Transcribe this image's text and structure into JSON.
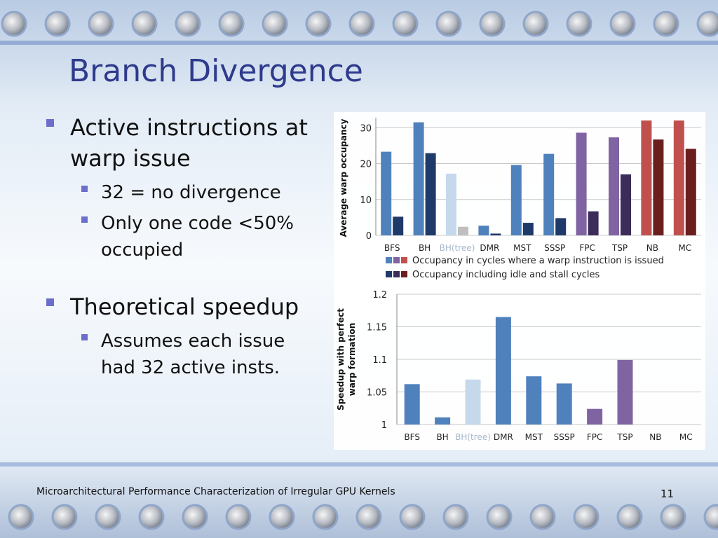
{
  "slide": {
    "title": "Branch Divergence",
    "bullets": [
      {
        "level": 1,
        "text": "Active instructions at warp issue"
      },
      {
        "level": 2,
        "text": "32 = no divergence"
      },
      {
        "level": 2,
        "text": "Only one code <50% occupied"
      },
      {
        "level": 1,
        "text": "Theoretical speedup"
      },
      {
        "level": 2,
        "text": "Assumes each issue had 32 active insts."
      }
    ],
    "footer": "Microarchitectural Performance Characterization of Irregular GPU Kernels",
    "page_number": "11"
  },
  "colors": {
    "title": "#2e3a8c",
    "bullet": "#6b6fc9",
    "blue": "#4f81bd",
    "blue_dark": "#1f3a68",
    "light": "#c6d9ec",
    "light_dark": "#bfbfbf",
    "purple": "#8064a2",
    "purple_dark": "#3b2c5a",
    "red": "#c0504d",
    "red_dark": "#6b1e1e"
  },
  "chart_data": [
    {
      "type": "bar",
      "categories": [
        "BFS",
        "BH",
        "BH(tree)",
        "DMR",
        "MST",
        "SSSP",
        "FPC",
        "TSP",
        "NB",
        "MC"
      ],
      "series": [
        {
          "name": "Occupancy in cycles where a warp instruction is issued",
          "values": [
            23.3,
            31.5,
            17.2,
            2.7,
            19.6,
            22.7,
            28.6,
            27.3,
            32,
            32
          ]
        },
        {
          "name": "Occupancy including idle and stall cycles",
          "values": [
            5.2,
            22.9,
            2.4,
            0.5,
            3.5,
            4.8,
            6.7,
            17.0,
            26.7,
            24.1
          ]
        }
      ],
      "title": "",
      "xlabel": "",
      "ylabel": "Average warp occupancy",
      "ylim": [
        0,
        32
      ],
      "yticks": [
        0,
        10,
        20,
        30
      ],
      "grid": true,
      "legend": "bottom"
    },
    {
      "type": "bar",
      "categories": [
        "BFS",
        "BH",
        "BH(tree)",
        "DMR",
        "MST",
        "SSSP",
        "FPC",
        "TSP",
        "NB",
        "MC"
      ],
      "series": [
        {
          "name": "",
          "values": [
            1.062,
            1.011,
            1.069,
            1.165,
            1.074,
            1.063,
            1.024,
            1.099,
            1.0,
            1.0
          ]
        }
      ],
      "title": "",
      "xlabel": "",
      "ylabel": "Speedup with perfect warp formation",
      "ylim": [
        1,
        1.2
      ],
      "yticks": [
        "1",
        "1.05",
        "1.1",
        "1.15",
        "1.2"
      ],
      "grid": true
    }
  ]
}
